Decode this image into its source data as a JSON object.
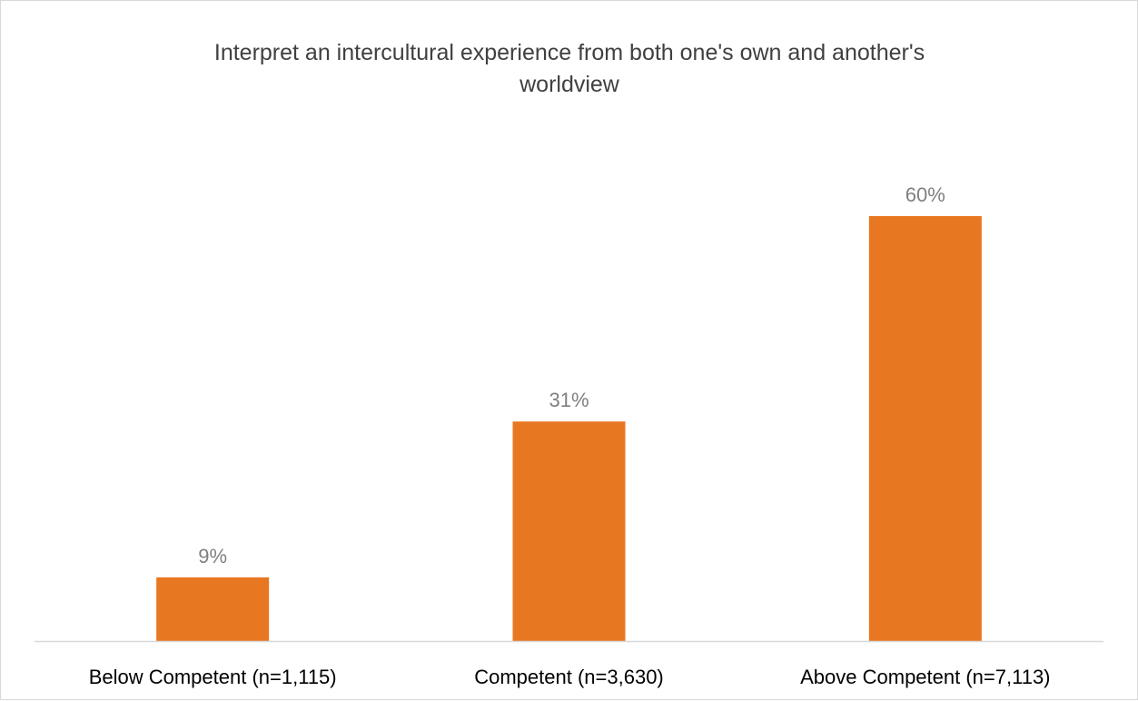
{
  "chart_data": {
    "type": "bar",
    "title_lines": [
      "Interpret an intercultural experience from both one's own and another's",
      "worldview"
    ],
    "categories": [
      "Below Competent (n=1,115)",
      "Competent (n=3,630)",
      "Above Competent (n=7,113)"
    ],
    "values": [
      9,
      31,
      60
    ],
    "data_labels": [
      "9%",
      "31%",
      "60%"
    ],
    "xlabel": "",
    "ylabel": "",
    "ylim": [
      0,
      70
    ],
    "grid": false,
    "legend": "none",
    "bar_color": "#E87722",
    "axis_color": "#d9d9d9"
  }
}
